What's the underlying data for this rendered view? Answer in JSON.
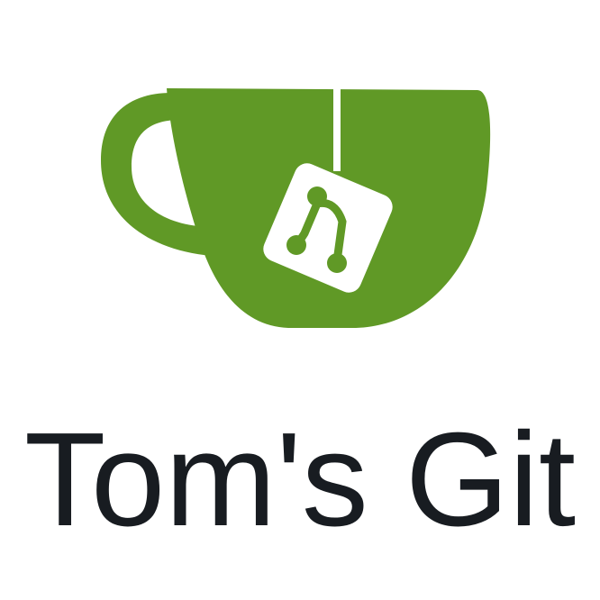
{
  "logo": {
    "icon": "gitea-teacup-icon",
    "color_primary": "#609926",
    "color_tag": "#ffffff"
  },
  "site": {
    "title": "Tom's Git"
  }
}
